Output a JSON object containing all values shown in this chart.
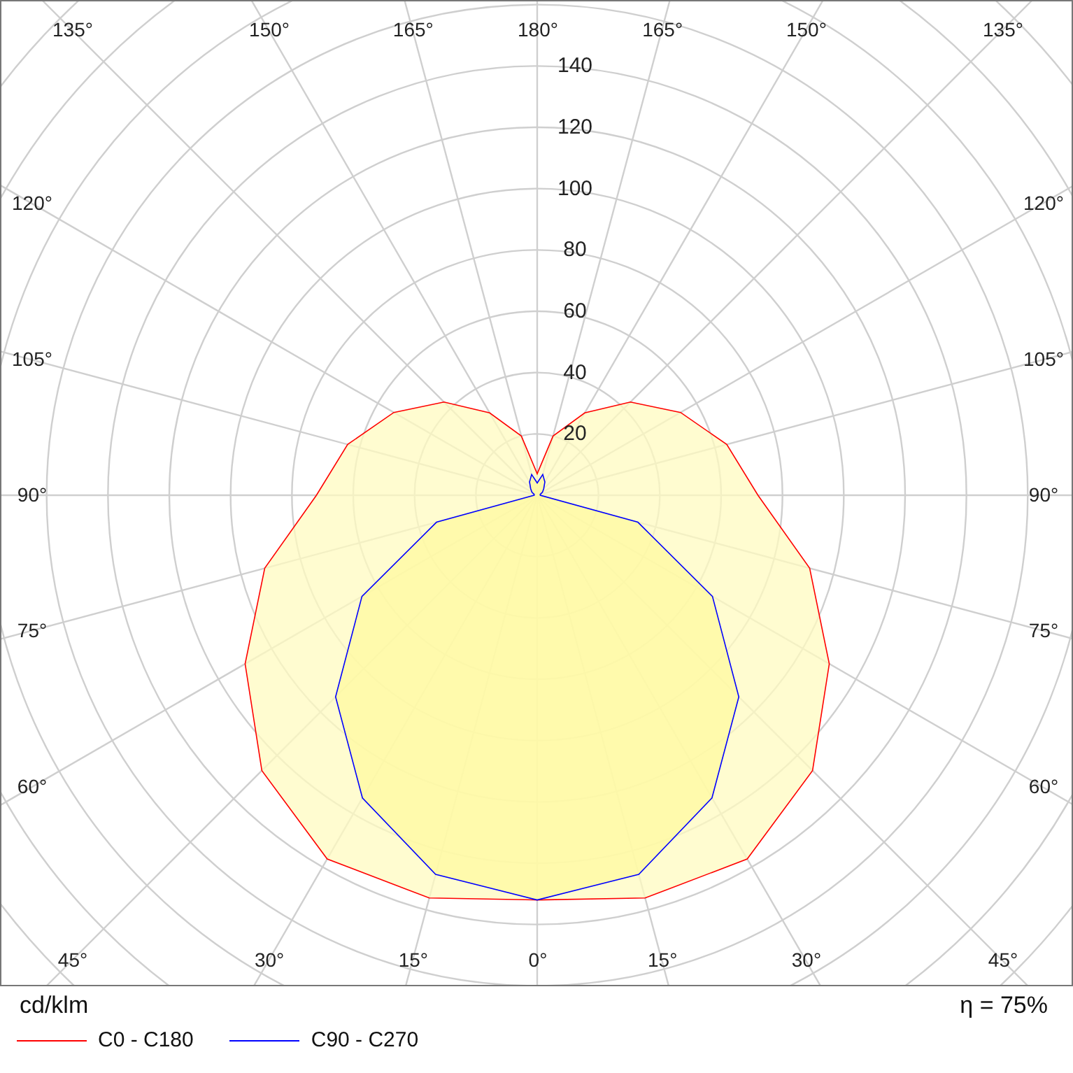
{
  "chart_data": {
    "type": "radar",
    "categories": [
      "180°",
      "165°",
      "150°",
      "135°",
      "120°",
      "105°",
      "90°",
      "75°",
      "60°",
      "45°",
      "30°",
      "15°",
      "0°",
      "15°",
      "30°",
      "45°",
      "60°",
      "75°",
      "90°",
      "105°",
      "120°",
      "135°",
      "150°",
      "165°"
    ],
    "series": [
      {
        "name": "C0 - C180",
        "color": "#ff0000",
        "values": [
          7,
          20,
          31,
          43,
          54,
          64,
          72,
          92,
          110,
          127,
          137,
          136,
          132,
          136,
          137,
          127,
          110,
          92,
          72,
          64,
          54,
          43,
          31,
          20
        ]
      },
      {
        "name": "C90 - C270",
        "color": "#0000ff",
        "values": [
          4,
          7,
          5,
          3,
          2,
          1,
          1,
          34,
          66,
          93,
          114,
          128,
          132,
          128,
          114,
          93,
          66,
          34,
          1,
          1,
          2,
          3,
          5,
          7
        ]
      }
    ],
    "ylim": [
      0,
      240
    ],
    "yticks": [
      20,
      40,
      60,
      80,
      100,
      120,
      140
    ],
    "ylabel": "cd/klm",
    "annotations": [
      "η = 75%"
    ],
    "grid": true,
    "legend": "bottom"
  }
}
